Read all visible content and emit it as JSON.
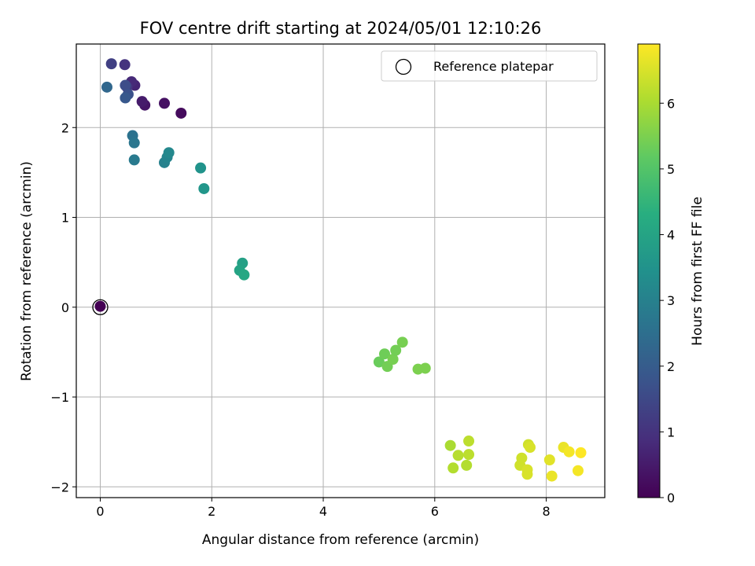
{
  "chart_data": {
    "type": "scatter",
    "title": "FOV centre drift starting at 2024/05/01 12:10:26",
    "xlabel": "Angular distance from reference (arcmin)",
    "ylabel": "Rotation from reference (arcmin)",
    "xlim": [
      -0.43,
      9.05
    ],
    "ylim": [
      -2.12,
      2.93
    ],
    "xticks": [
      0,
      2,
      4,
      6,
      8
    ],
    "xtick_labels": [
      "0",
      "2",
      "4",
      "6",
      "8"
    ],
    "yticks": [
      -2,
      -1,
      0,
      1,
      2
    ],
    "ytick_labels": [
      "−2",
      "−1",
      "0",
      "1",
      "2"
    ],
    "grid": true,
    "legend": {
      "position": "top-right",
      "entries": [
        "Reference platepar"
      ]
    },
    "reference_point": {
      "x": 0,
      "y": 0
    },
    "colorbar": {
      "label": "Hours from first FF file",
      "colormap": "viridis",
      "range": [
        0,
        6.9
      ],
      "ticks": [
        0,
        1,
        2,
        3,
        4,
        5,
        6
      ],
      "tick_labels": [
        "0",
        "1",
        "2",
        "3",
        "4",
        "5",
        "6"
      ]
    },
    "points": [
      {
        "x": 0.0,
        "y": 0.01,
        "h": 0.0
      },
      {
        "x": 1.45,
        "y": 2.16,
        "h": 0.2
      },
      {
        "x": 1.15,
        "y": 2.27,
        "h": 0.3
      },
      {
        "x": 0.8,
        "y": 2.25,
        "h": 0.4
      },
      {
        "x": 0.75,
        "y": 2.29,
        "h": 0.5
      },
      {
        "x": 0.62,
        "y": 2.47,
        "h": 0.7
      },
      {
        "x": 0.56,
        "y": 2.51,
        "h": 0.8
      },
      {
        "x": 0.44,
        "y": 2.7,
        "h": 1.0
      },
      {
        "x": 0.48,
        "y": 2.45,
        "h": 1.1
      },
      {
        "x": 0.2,
        "y": 2.71,
        "h": 1.3
      },
      {
        "x": 0.45,
        "y": 2.47,
        "h": 1.6
      },
      {
        "x": 0.5,
        "y": 2.37,
        "h": 1.7
      },
      {
        "x": 0.45,
        "y": 2.33,
        "h": 1.9
      },
      {
        "x": 0.12,
        "y": 2.45,
        "h": 2.3
      },
      {
        "x": 0.58,
        "y": 1.91,
        "h": 2.6
      },
      {
        "x": 0.61,
        "y": 1.83,
        "h": 2.7
      },
      {
        "x": 0.61,
        "y": 1.64,
        "h": 2.8
      },
      {
        "x": 1.15,
        "y": 1.61,
        "h": 3.0
      },
      {
        "x": 1.2,
        "y": 1.67,
        "h": 3.1
      },
      {
        "x": 1.23,
        "y": 1.72,
        "h": 3.2
      },
      {
        "x": 1.8,
        "y": 1.55,
        "h": 3.5
      },
      {
        "x": 1.86,
        "y": 1.32,
        "h": 3.6
      },
      {
        "x": 2.55,
        "y": 0.49,
        "h": 3.9
      },
      {
        "x": 2.5,
        "y": 0.41,
        "h": 4.0
      },
      {
        "x": 2.58,
        "y": 0.36,
        "h": 4.1
      },
      {
        "x": 5.0,
        "y": -0.61,
        "h": 5.3
      },
      {
        "x": 5.1,
        "y": -0.52,
        "h": 5.35
      },
      {
        "x": 5.15,
        "y": -0.66,
        "h": 5.4
      },
      {
        "x": 5.25,
        "y": -0.58,
        "h": 5.45
      },
      {
        "x": 5.3,
        "y": -0.48,
        "h": 5.4
      },
      {
        "x": 5.42,
        "y": -0.39,
        "h": 5.45
      },
      {
        "x": 5.7,
        "y": -0.69,
        "h": 5.5
      },
      {
        "x": 5.83,
        "y": -0.68,
        "h": 5.5
      },
      {
        "x": 6.28,
        "y": -1.54,
        "h": 6.0
      },
      {
        "x": 6.33,
        "y": -1.79,
        "h": 6.1
      },
      {
        "x": 6.42,
        "y": -1.65,
        "h": 6.15
      },
      {
        "x": 6.57,
        "y": -1.76,
        "h": 6.1
      },
      {
        "x": 6.61,
        "y": -1.64,
        "h": 6.2
      },
      {
        "x": 6.61,
        "y": -1.49,
        "h": 6.2
      },
      {
        "x": 7.53,
        "y": -1.76,
        "h": 6.4
      },
      {
        "x": 7.56,
        "y": -1.68,
        "h": 6.4
      },
      {
        "x": 7.66,
        "y": -1.81,
        "h": 6.5
      },
      {
        "x": 7.66,
        "y": -1.86,
        "h": 6.5
      },
      {
        "x": 7.68,
        "y": -1.53,
        "h": 6.4
      },
      {
        "x": 7.71,
        "y": -1.56,
        "h": 6.5
      },
      {
        "x": 8.06,
        "y": -1.7,
        "h": 6.6
      },
      {
        "x": 8.1,
        "y": -1.88,
        "h": 6.7
      },
      {
        "x": 8.31,
        "y": -1.56,
        "h": 6.7
      },
      {
        "x": 8.41,
        "y": -1.61,
        "h": 6.8
      },
      {
        "x": 8.57,
        "y": -1.82,
        "h": 6.8
      },
      {
        "x": 8.62,
        "y": -1.62,
        "h": 6.9
      }
    ]
  }
}
